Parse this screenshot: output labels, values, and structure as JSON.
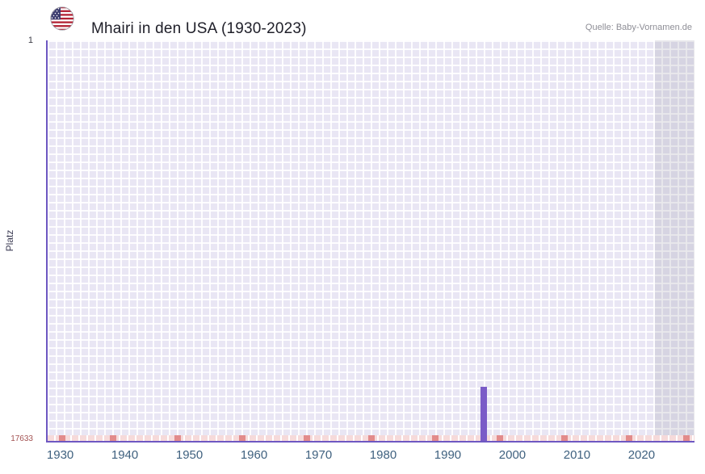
{
  "header": {
    "flag_icon": "us-flag-icon",
    "title": "Mhairi in den USA (1930-2023)",
    "source": "Quelle: Baby-Vornamen.de"
  },
  "chart_data": {
    "type": "bar",
    "title": "Mhairi in den USA (1930-2023)",
    "ylabel": "Platz",
    "xlabel": "",
    "grid": true,
    "legend": "none",
    "y_axis": {
      "min": 1,
      "max": 17633,
      "inverted": true,
      "top_tick_label": "1",
      "bottom_tick_label": "17633"
    },
    "x_axis": {
      "min": 1927.8,
      "max": 2028.2,
      "ticks": [
        1930,
        1940,
        1950,
        1960,
        1970,
        1980,
        1990,
        2000,
        2010,
        2020
      ]
    },
    "points": [
      {
        "year": 1995,
        "rank": 15255
      }
    ],
    "future_region_start_year": 2022,
    "unranked_marker_years": [
      1930,
      1938,
      1948,
      1958,
      1968,
      1978,
      1988,
      1998,
      2008,
      2018,
      2027
    ],
    "colors": {
      "bar": "#7a5bc7",
      "axis": "#6e58c2",
      "plot_background": "#e9e6f4",
      "grid_lines": "#ffffff",
      "unranked_band": "#f6dada",
      "unranked_mark": "#e28b8b",
      "future_shade": "rgba(120,120,138,0.16)",
      "tick_label": "#3f617f"
    }
  }
}
